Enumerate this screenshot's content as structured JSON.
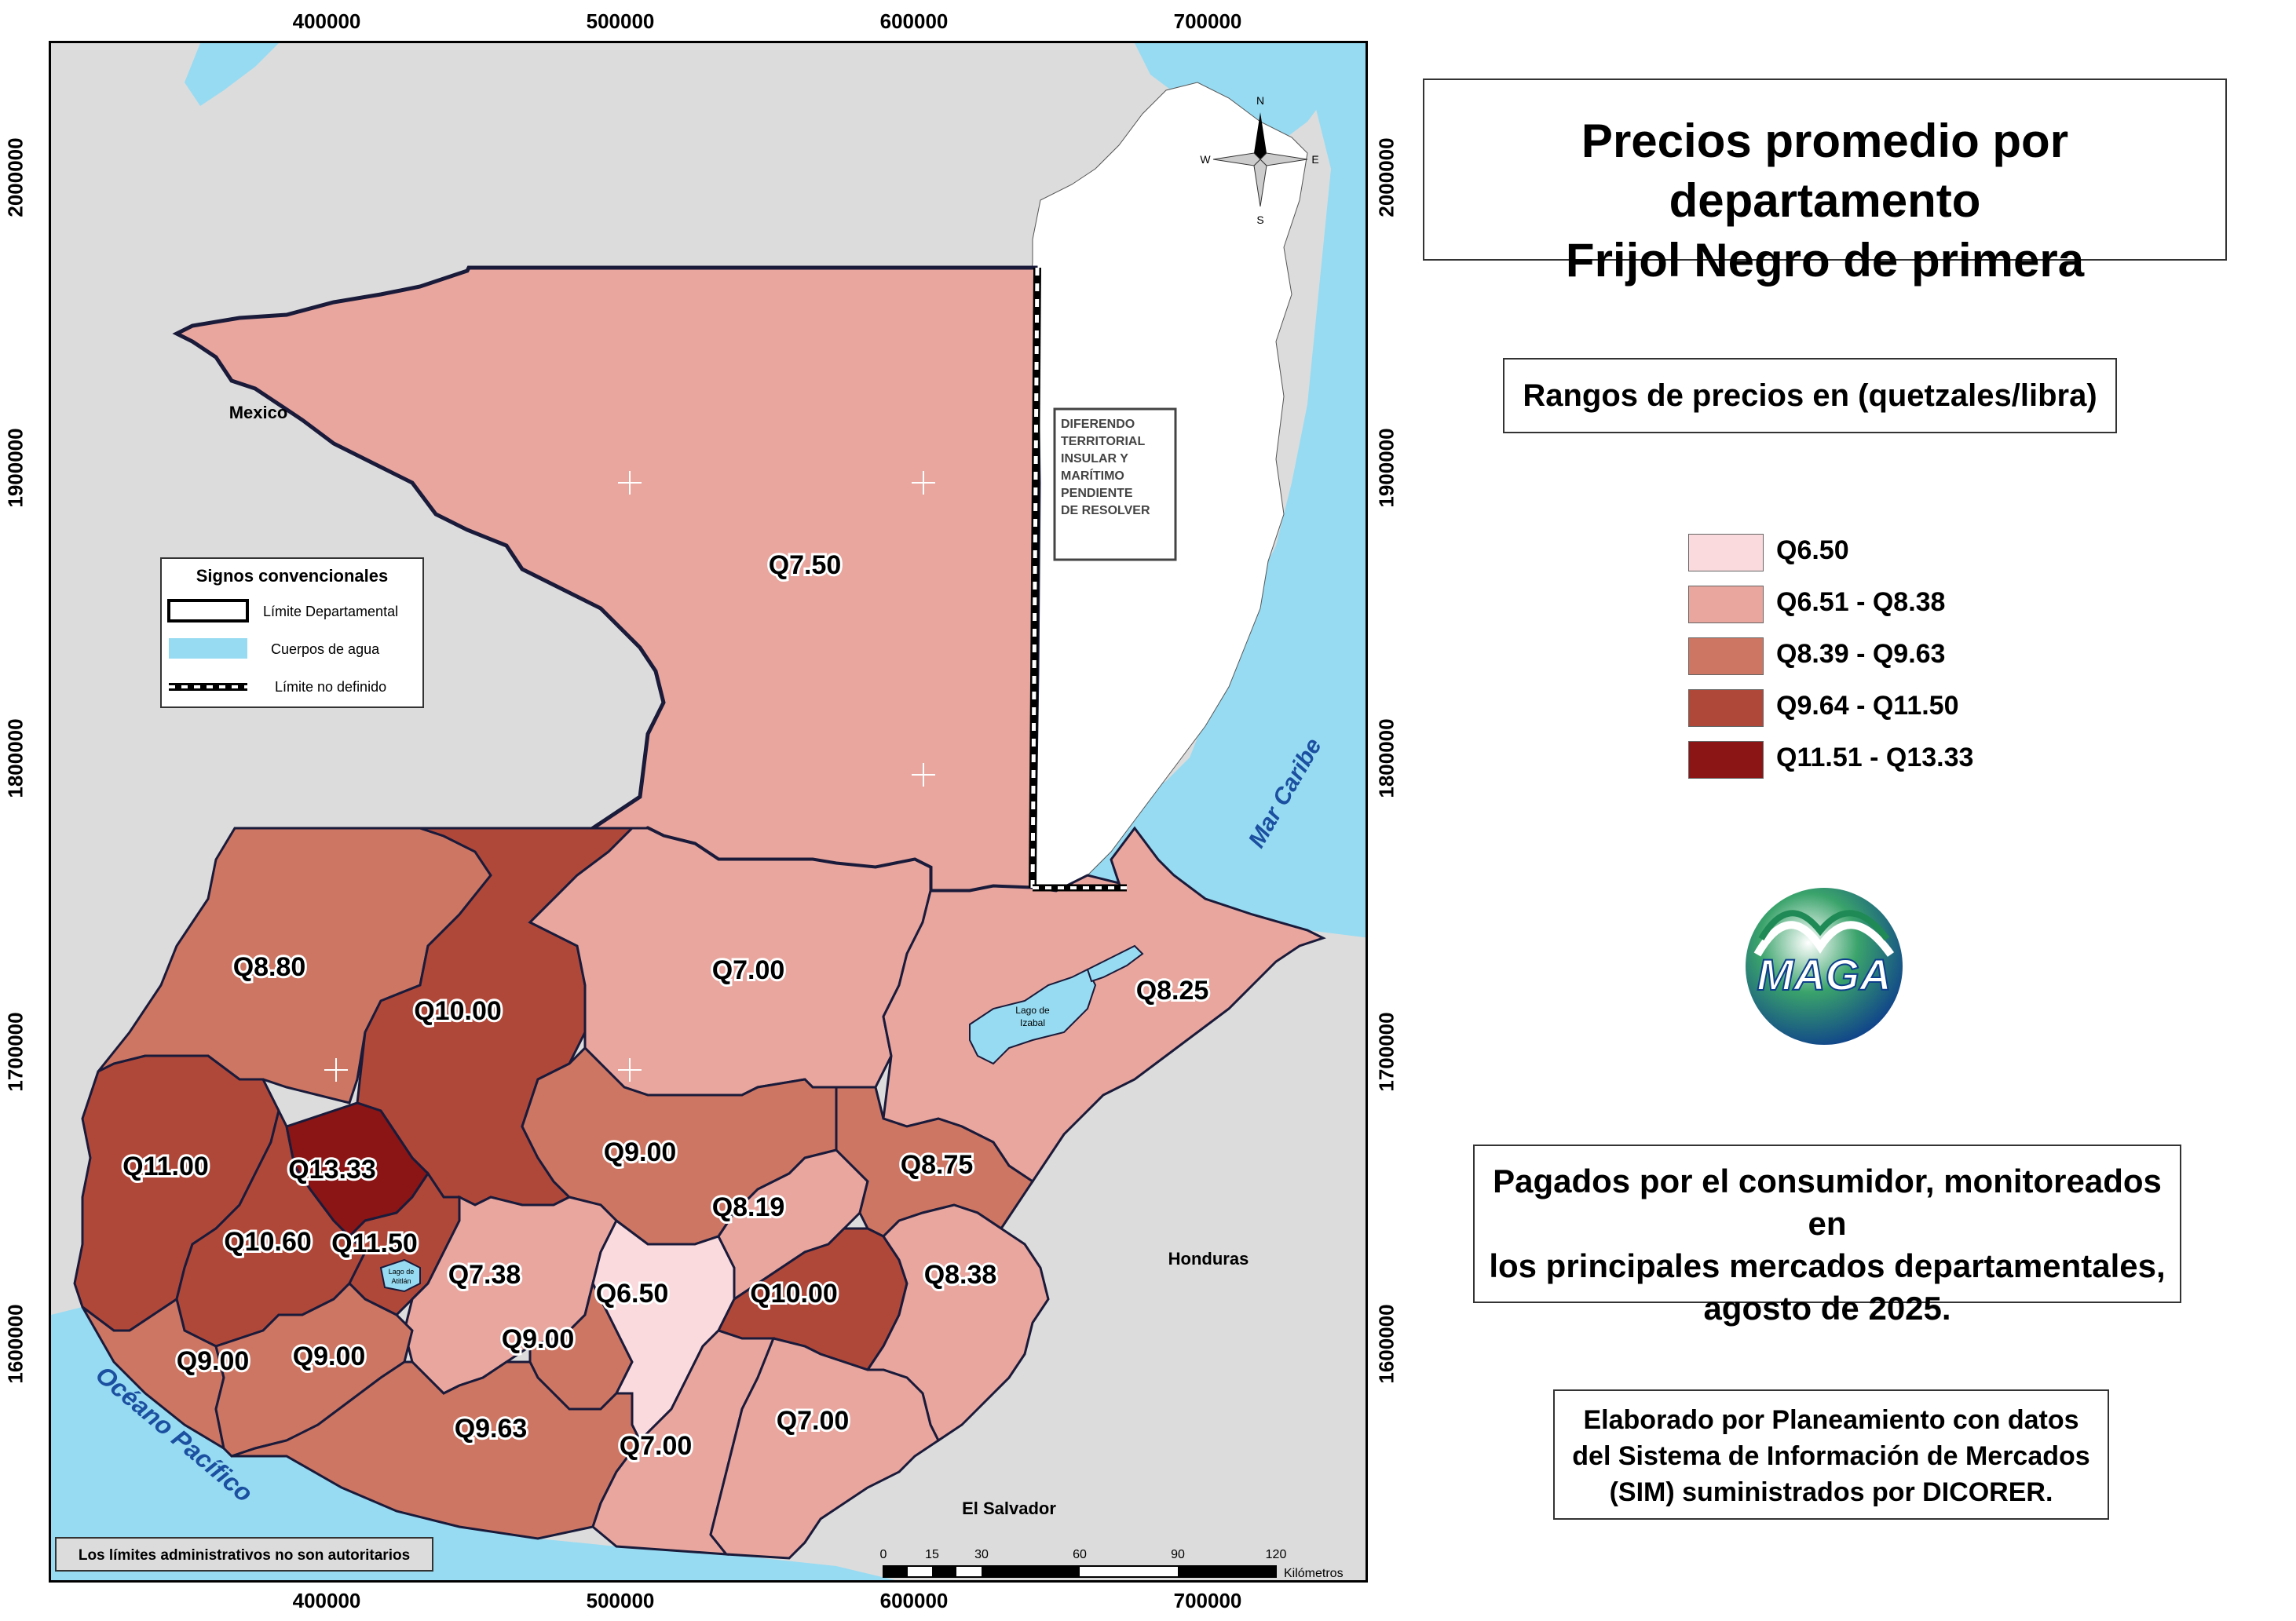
{
  "title": {
    "line1": "Precios promedio por departamento",
    "line2": "Frijol Negro de primera"
  },
  "legend_title": "Rangos de precios en (quetzales/libra)",
  "legend": [
    {
      "label": "Q6.50",
      "color": "#fadadd"
    },
    {
      "label": "Q6.51 - Q8.38",
      "color": "#e8a69e"
    },
    {
      "label": "Q8.39 - Q9.63",
      "color": "#cd7663"
    },
    {
      "label": "Q9.64 - Q11.50",
      "color": "#b0483a"
    },
    {
      "label": "Q11.51 - Q13.33",
      "color": "#8b1515"
    }
  ],
  "description": {
    "line1": "Pagados por el consumidor, monitoreados en",
    "line2": "los principales mercados departamentales,",
    "line3": "agosto de 2025."
  },
  "credit": {
    "line1": "Elaborado por Planeamiento con datos",
    "line2": "del Sistema de Información de Mercados",
    "line3": "(SIM) suministrados por DICORER."
  },
  "logo_text": "MAGA",
  "axis": {
    "x_ticks": [
      "400000",
      "500000",
      "600000",
      "700000"
    ],
    "y_ticks": [
      "2000000",
      "1900000",
      "1800000",
      "1700000",
      "1600000"
    ]
  },
  "conventions": {
    "title": "Signos convencionales",
    "items": [
      "Límite Departamental",
      "Cuerpos de agua",
      "Límite no definido"
    ]
  },
  "disclaimer": "Los límites administrativos no son autoritarios",
  "scale_bar": {
    "ticks": [
      "0",
      "15",
      "30",
      "60",
      "90",
      "120"
    ],
    "unit": "Kilómetros"
  },
  "place_labels": {
    "mexico": "Mexico",
    "honduras": "Honduras",
    "el_salvador": "El Salvador",
    "mar_caribe": "Mar Caribe",
    "oceano": "Océano Pacífico",
    "lago_izabal": [
      "Lago de",
      "Izabal"
    ],
    "lago_atitlan": [
      "Lago de",
      "Atitlán"
    ],
    "diferendo": [
      "DIFERENDO",
      "TERRITORIAL",
      "INSULAR Y",
      "MARÍTIMO",
      "PENDIENTE",
      "DE RESOLVER"
    ]
  },
  "compass": {
    "n": "N",
    "s": "S",
    "e": "E",
    "w": "W"
  },
  "colors": {
    "water": "#97dbf2",
    "land_foreign": "#dcdcdc",
    "belize": "#ffffff"
  },
  "departments": [
    {
      "name": "peten",
      "price": "Q7.50",
      "class": 1
    },
    {
      "name": "huehuetenango",
      "price": "Q8.80",
      "class": 2
    },
    {
      "name": "quiche",
      "price": "Q10.00",
      "class": 3
    },
    {
      "name": "alta-verapaz",
      "price": "Q7.00",
      "class": 1
    },
    {
      "name": "izabal",
      "price": "Q8.25",
      "class": 1
    },
    {
      "name": "san-marcos",
      "price": "Q11.00",
      "class": 3
    },
    {
      "name": "totonicapan",
      "price": "Q13.33",
      "class": 4
    },
    {
      "name": "baja-verapaz",
      "price": "Q9.00",
      "class": 2
    },
    {
      "name": "zacapa",
      "price": "Q8.75",
      "class": 2
    },
    {
      "name": "el-progreso",
      "price": "Q8.19",
      "class": 1
    },
    {
      "name": "quetzaltenango",
      "price": "Q10.60",
      "class": 3
    },
    {
      "name": "solola",
      "price": "Q11.50",
      "class": 3
    },
    {
      "name": "chimaltenango",
      "price": "Q7.38",
      "class": 1
    },
    {
      "name": "guatemala",
      "price": "Q6.50",
      "class": 0
    },
    {
      "name": "jalapa",
      "price": "Q10.00",
      "class": 3
    },
    {
      "name": "chiquimula",
      "price": "Q8.38",
      "class": 1
    },
    {
      "name": "retalhuleu",
      "price": "Q9.00",
      "class": 2
    },
    {
      "name": "suchitepequez",
      "price": "Q9.00",
      "class": 2
    },
    {
      "name": "sacatepequez",
      "price": "Q9.00",
      "class": 2
    },
    {
      "name": "escuintla",
      "price": "Q9.63",
      "class": 2
    },
    {
      "name": "santa-rosa",
      "price": "Q7.00",
      "class": 1
    },
    {
      "name": "jutiapa",
      "price": "Q7.00",
      "class": 1
    }
  ]
}
